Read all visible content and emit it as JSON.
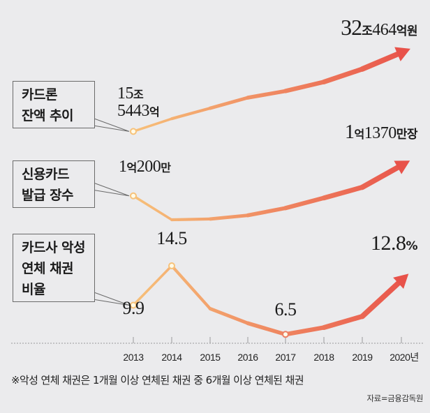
{
  "chart_data": [
    {
      "type": "line",
      "title": "카드론 잔액 추이",
      "unit": "조원",
      "x": [
        "2013",
        "2014",
        "2015",
        "2016",
        "2017",
        "2018",
        "2019",
        "2020"
      ],
      "values": [
        15.54,
        18.2,
        20.4,
        22.6,
        24.0,
        25.9,
        28.6,
        32.05
      ],
      "start_label": [
        "15조",
        "5443억"
      ],
      "end_label": {
        "big": "32",
        "small": "조464억원"
      },
      "ylim": [
        8,
        34
      ]
    },
    {
      "type": "line",
      "title": "신용카드 발급 장수",
      "unit": "만장",
      "x": [
        "2013",
        "2014",
        "2015",
        "2016",
        "2017",
        "2018",
        "2019",
        "2020"
      ],
      "values": [
        10200,
        9280,
        9310,
        9450,
        9730,
        10120,
        10530,
        11370
      ],
      "start_label": {
        "big": "1",
        "small1": "억",
        "mid": "200",
        "small2": "만"
      },
      "end_label": {
        "big": "1",
        "small1": "억",
        "mid": "1370",
        "small2": "만장"
      },
      "ylim": [
        7000,
        12500
      ]
    },
    {
      "type": "line",
      "title": "카드사 악성 연체 채권 비율",
      "unit": "%",
      "x": [
        "2013",
        "2014",
        "2015",
        "2016",
        "2017",
        "2018",
        "2019",
        "2020"
      ],
      "values": [
        9.9,
        14.5,
        9.5,
        7.8,
        6.5,
        7.3,
        8.6,
        12.8
      ],
      "point_labels": {
        "2013": "9.9",
        "2014": "14.5",
        "2017": "6.5"
      },
      "end_label": {
        "big": "12.8",
        "small": "%"
      },
      "ylim": [
        4,
        18
      ]
    }
  ],
  "series_labels": [
    [
      "카드론",
      "잔액 추이"
    ],
    [
      "신용카드",
      "발급 장수"
    ],
    [
      "카드사 악성",
      "연체 채권",
      "비율"
    ]
  ],
  "x_axis": {
    "ticks": [
      "2013",
      "2014",
      "2015",
      "2016",
      "2017",
      "2018",
      "2019",
      "2020년"
    ]
  },
  "footnote": "※악성 연체 채권은 1개월 이상 연체된 채권 중 6개월 이상 연체된 채권",
  "source": "자료=금융감독원",
  "colors": {
    "start": "#f7c27a",
    "end": "#e8524a",
    "text": "#1a1a1a",
    "background": "#ebebed",
    "axis": "#9a9a9a"
  }
}
